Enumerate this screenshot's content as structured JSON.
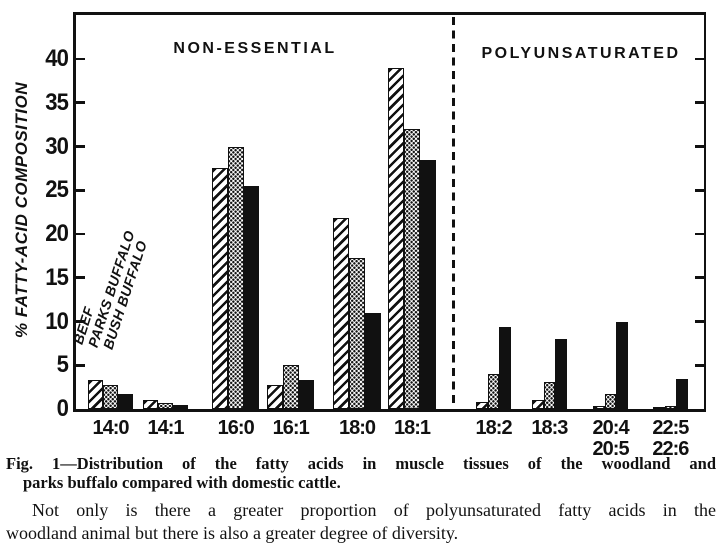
{
  "chart_data": {
    "type": "bar",
    "section_titles": [
      "NON-ESSENTIAL",
      "POLYUNSATURATED"
    ],
    "ylabel": "% FATTY-ACID COMPOSITION",
    "ylim": [
      0,
      45
    ],
    "yticks": [
      0,
      5,
      10,
      15,
      20,
      25,
      30,
      35,
      40
    ],
    "grid": false,
    "legend_position": "rotated labels above 14:0 group",
    "categories": [
      "14:0",
      "14:1",
      "16:0",
      "16:1",
      "18:0",
      "18:1",
      "18:2",
      "18:3",
      "20:4\n20:5",
      "22:5\n22:6"
    ],
    "divider_after_index": 5,
    "series": [
      {
        "name": "BEEF",
        "pattern": "diagonal-hatch",
        "values": [
          3.3,
          1.0,
          27.5,
          2.7,
          21.8,
          39.0,
          0.8,
          1.0,
          0.3,
          0.2
        ]
      },
      {
        "name": "PARKS BUFFALO",
        "pattern": "stipple-dots",
        "values": [
          2.8,
          0.7,
          30.0,
          5.0,
          17.3,
          32.0,
          4.0,
          3.1,
          1.7,
          0.3
        ]
      },
      {
        "name": "BUSH BUFFALO",
        "pattern": "solid-black",
        "values": [
          1.7,
          0.5,
          25.5,
          3.3,
          11.0,
          28.5,
          9.4,
          8.0,
          9.9,
          3.4
        ]
      }
    ],
    "colors": {
      "ink": "#111111",
      "paper": "#ffffff"
    }
  },
  "figure_text": {
    "caption_line1": "Fig. 1—Distribution of the fatty acids in muscle tissues of the woodland and",
    "caption_line2": "parks buffalo compared with domestic cattle.",
    "body_line1": "Not only is there a greater proportion of polyunsaturated fatty acids in the",
    "body_line2": "woodland animal but there is also a greater degree of diversity."
  }
}
